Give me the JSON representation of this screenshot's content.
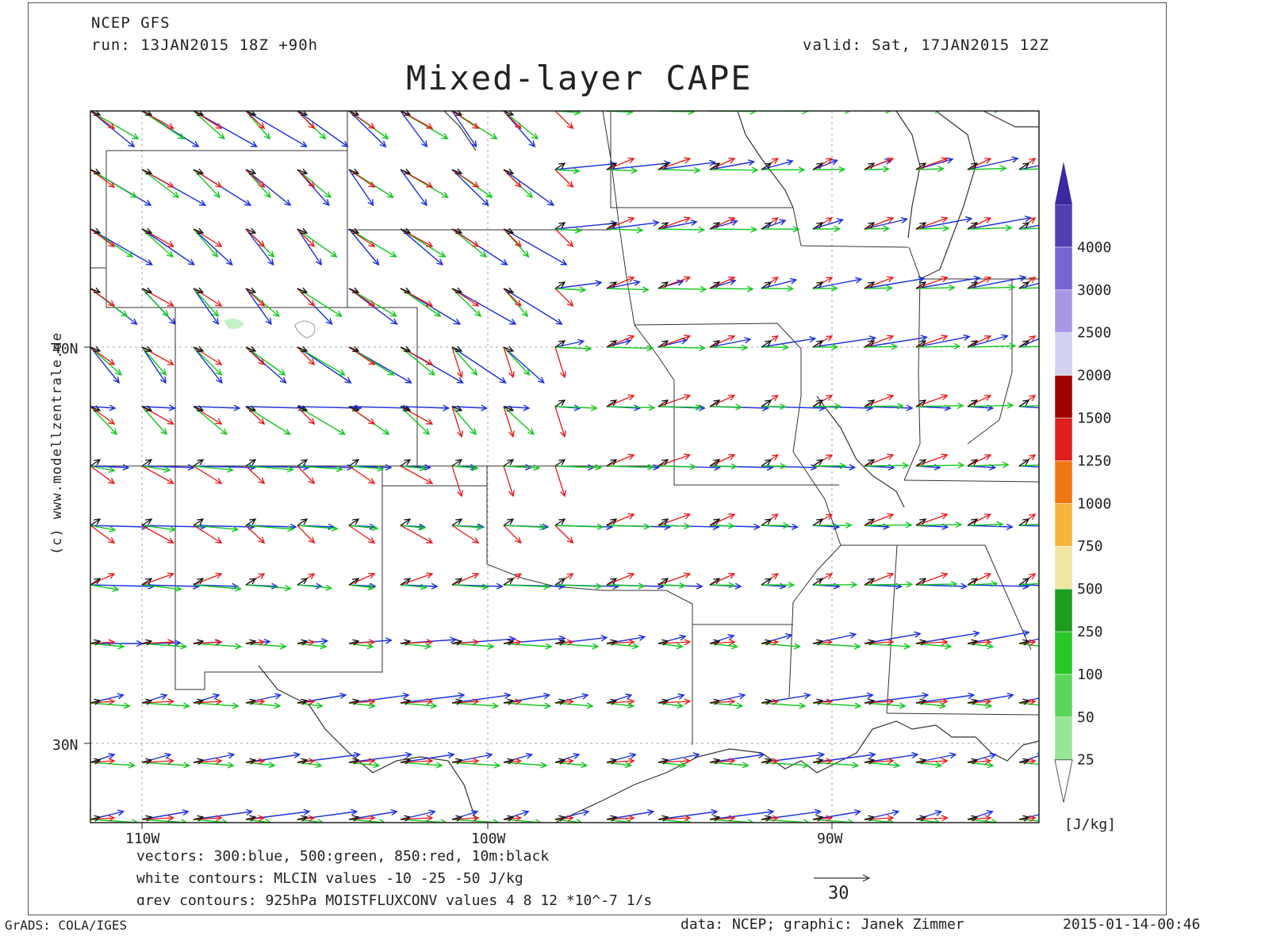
{
  "header": {
    "model": "NCEP GFS",
    "run": "run: 13JAN2015 18Z +90h",
    "valid": "valid: Sat, 17JAN2015 12Z",
    "title": "Mixed-layer CAPE"
  },
  "watermark": "(c) www.modellzentrale.de",
  "map": {
    "lat_labels": [
      "40N",
      "30N"
    ],
    "lon_labels": [
      "110W",
      "100W",
      "90W"
    ],
    "extent": {
      "lon_min": -111.5,
      "lon_max": -84.0,
      "lat_min": 27.9,
      "lat_max": 44.0
    }
  },
  "legend": {
    "unit": "[J/kg]",
    "levels": [
      "25",
      "50",
      "100",
      "250",
      "500",
      "750",
      "1000",
      "1250",
      "1500",
      "2000",
      "2500",
      "3000",
      "4000"
    ],
    "colors": [
      "#c8f5c8",
      "#96e696",
      "#5ad75a",
      "#28c828",
      "#1e9e1e",
      "#f0e6a0",
      "#f5b43c",
      "#f07814",
      "#e11e1e",
      "#a00000",
      "#d2d2f0",
      "#a896e6",
      "#7864d2",
      "#5040b4",
      "#3c28a0"
    ]
  },
  "notes": {
    "vectors": "vectors: 300:blue, 500:green, 850:red, 10m:black",
    "white_contours": "white contours: MLCIN values -10 -25 -50 J/kg",
    "grey_contours": "grey contours: 925hPa MOISTFLUXCONV values 4 8 12 *10^-7 1/s",
    "ref_vector_value": "30"
  },
  "footer": {
    "left": "GrADS: COLA/IGES",
    "center": "data: NCEP; graphic: Janek Zimmer",
    "right": "2015-01-14-00:46"
  },
  "vector_colors": {
    "300": "#1a2fe0",
    "500": "#12c81e",
    "850": "#e81818",
    "10m": "#111111"
  }
}
